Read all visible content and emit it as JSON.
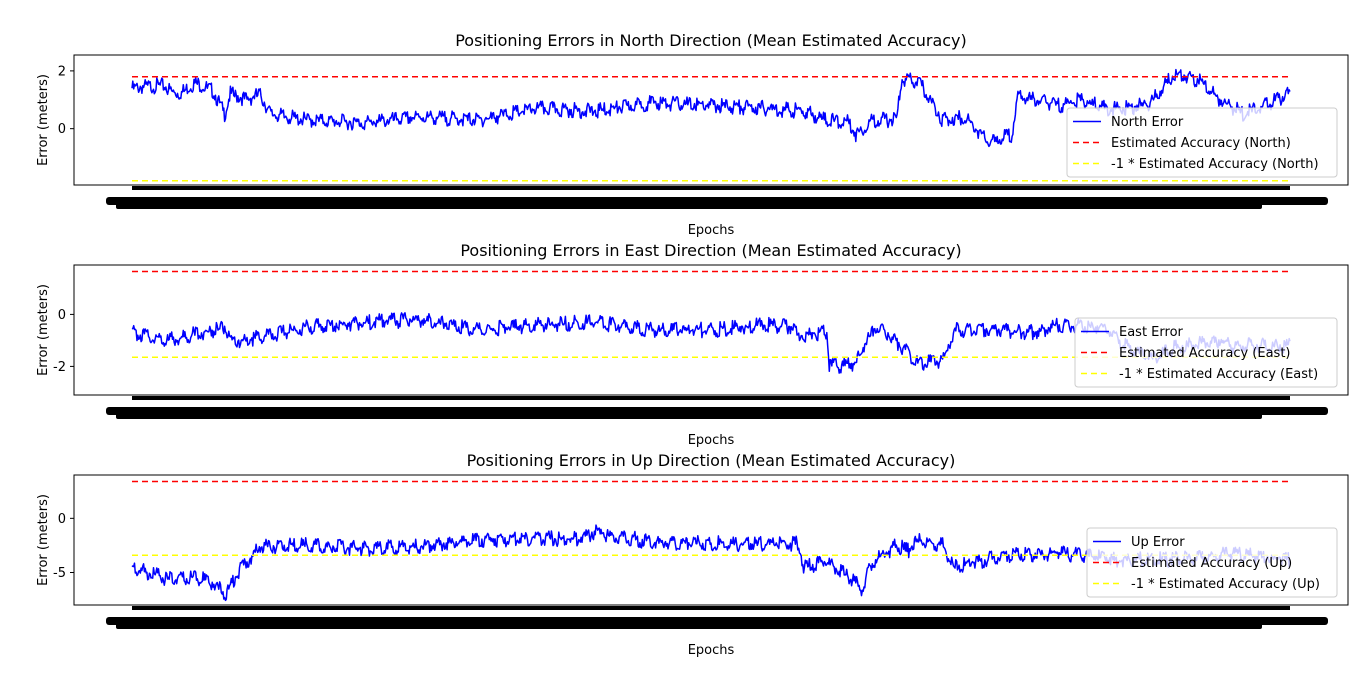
{
  "colors": {
    "error": "#0000ff",
    "accuracy": "#ff0000",
    "neg_accuracy": "#ffff00",
    "axes": "#000000",
    "background": "#ffffff"
  },
  "chart_data": [
    {
      "type": "line",
      "title": "Positioning Errors in North Direction (Mean Estimated Accuracy)",
      "xlabel": "Epochs",
      "ylabel": "Error (meters)",
      "ylim": [
        -1.95,
        2.55
      ],
      "yticks": [
        0,
        2
      ],
      "grid": false,
      "legend_position": "lower-right",
      "x_range": [
        0,
        1000
      ],
      "series": [
        {
          "name": "North Error",
          "style": "solid",
          "color": "#0000ff",
          "x": [
            0,
            25,
            40,
            55,
            70,
            80,
            85,
            100,
            110,
            120,
            150,
            200,
            250,
            300,
            350,
            400,
            450,
            500,
            550,
            580,
            600,
            620,
            625,
            640,
            660,
            665,
            680,
            700,
            720,
            740,
            760,
            765,
            780,
            800,
            820,
            840,
            860,
            880,
            900,
            920,
            940,
            960,
            1000
          ],
          "y": [
            1.4,
            1.5,
            1.2,
            1.6,
            1.3,
            0.5,
            1.2,
            1.0,
            1.2,
            0.5,
            0.3,
            0.2,
            0.4,
            0.3,
            0.7,
            0.6,
            0.9,
            0.8,
            0.7,
            0.6,
            0.3,
            0.2,
            -0.2,
            0.3,
            0.3,
            1.7,
            1.6,
            0.3,
            0.4,
            -0.5,
            -0.2,
            1.1,
            1.0,
            0.8,
            1.0,
            0.7,
            0.7,
            0.9,
            1.9,
            1.7,
            1.0,
            0.5,
            1.2
          ]
        },
        {
          "name": "Estimated Accuracy (North)",
          "style": "dashed",
          "color": "#ff0000",
          "x": [
            0,
            1000
          ],
          "y": [
            1.8,
            1.8
          ]
        },
        {
          "name": "-1 * Estimated Accuracy (North)",
          "style": "dashed",
          "color": "#ffff00",
          "x": [
            0,
            1000
          ],
          "y": [
            -1.8,
            -1.8
          ]
        }
      ]
    },
    {
      "type": "line",
      "title": "Positioning Errors in East Direction (Mean Estimated Accuracy)",
      "xlabel": "Epochs",
      "ylabel": "Error (meters)",
      "ylim": [
        -3.1,
        1.9
      ],
      "yticks": [
        -2,
        0
      ],
      "grid": false,
      "legend_position": "lower-right",
      "x_range": [
        0,
        1000
      ],
      "series": [
        {
          "name": "East Error",
          "style": "solid",
          "color": "#0000ff",
          "x": [
            0,
            30,
            80,
            85,
            120,
            150,
            200,
            250,
            300,
            350,
            400,
            450,
            500,
            550,
            570,
            575,
            600,
            602,
            625,
            630,
            640,
            650,
            680,
            700,
            710,
            750,
            780,
            800,
            840,
            860,
            880,
            900,
            940,
            950,
            1000
          ],
          "y": [
            -0.7,
            -1.0,
            -0.5,
            -1.1,
            -0.8,
            -0.5,
            -0.3,
            -0.2,
            -0.6,
            -0.4,
            -0.3,
            -0.6,
            -0.6,
            -0.4,
            -0.5,
            -0.8,
            -0.7,
            -2.0,
            -1.9,
            -1.4,
            -0.6,
            -0.6,
            -1.9,
            -1.8,
            -0.6,
            -0.6,
            -0.7,
            -0.4,
            -0.5,
            -1.3,
            -1.7,
            -1.3,
            -1.0,
            -1.2,
            -1.2
          ]
        },
        {
          "name": "Estimated Accuracy (East)",
          "style": "dashed",
          "color": "#ff0000",
          "x": [
            0,
            1000
          ],
          "y": [
            1.65,
            1.65
          ]
        },
        {
          "name": "-1 * Estimated Accuracy (East)",
          "style": "dashed",
          "color": "#ffff00",
          "x": [
            0,
            1000
          ],
          "y": [
            -1.65,
            -1.65
          ]
        }
      ]
    },
    {
      "type": "line",
      "title": "Positioning Errors in Up Direction (Mean Estimated Accuracy)",
      "xlabel": "Epochs",
      "ylabel": "Error (meters)",
      "ylim": [
        -8,
        4
      ],
      "yticks": [
        -5,
        0
      ],
      "grid": false,
      "legend_position": "lower-right",
      "x_range": [
        0,
        1000
      ],
      "series": [
        {
          "name": "Up Error",
          "style": "solid",
          "color": "#0000ff",
          "x": [
            0,
            30,
            60,
            70,
            80,
            95,
            100,
            110,
            150,
            200,
            250,
            300,
            350,
            380,
            400,
            450,
            500,
            550,
            575,
            580,
            600,
            620,
            630,
            640,
            660,
            670,
            680,
            700,
            710,
            750,
            800,
            850,
            900,
            950,
            1000
          ],
          "y": [
            -4.5,
            -5.6,
            -5.5,
            -6.0,
            -7.0,
            -4.5,
            -4.0,
            -2.6,
            -2.5,
            -2.8,
            -2.6,
            -2.0,
            -1.8,
            -2.0,
            -1.3,
            -2.2,
            -2.3,
            -2.4,
            -2.3,
            -4.5,
            -4.0,
            -5.5,
            -6.5,
            -4.0,
            -2.5,
            -3.0,
            -2.0,
            -2.5,
            -4.5,
            -3.5,
            -3.2,
            -3.8,
            -3.8,
            -3.3,
            -3.8
          ]
        },
        {
          "name": "Estimated Accuracy (Up)",
          "style": "dashed",
          "color": "#ff0000",
          "x": [
            0,
            1000
          ],
          "y": [
            3.4,
            3.4
          ]
        },
        {
          "name": "-1 * Estimated Accuracy (Up)",
          "style": "dashed",
          "color": "#ffff00",
          "x": [
            0,
            1000
          ],
          "y": [
            -3.4,
            -3.4
          ]
        }
      ]
    }
  ]
}
